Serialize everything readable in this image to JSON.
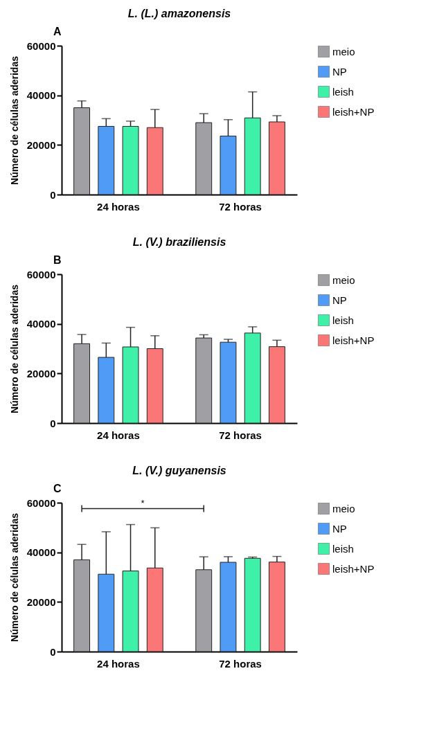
{
  "chart_data": [
    {
      "type": "bar",
      "title": "L. (L.) amazonensis",
      "ylabel": "Número de células aderidas",
      "categories": [
        "24 horas",
        "72 horas"
      ],
      "ylim": [
        0,
        60000
      ],
      "yticks": [
        0,
        20000,
        40000,
        60000
      ],
      "grid": false,
      "legend": "right",
      "annotations": [
        "A"
      ],
      "series": [
        {
          "name": "meio",
          "color": "#a0a0a4",
          "values": [
            35000,
            29000
          ],
          "errors": [
            [
              35000,
              37750
            ],
            [
              29000,
              32600
            ]
          ]
        },
        {
          "name": "NP",
          "color": "#4f9bf5",
          "values": [
            27500,
            23600
          ],
          "errors": [
            [
              27500,
              30600
            ],
            [
              23600,
              30200
            ]
          ]
        },
        {
          "name": "leish",
          "color": "#3ff0a8",
          "values": [
            27500,
            30900
          ],
          "errors": [
            [
              27500,
              29600
            ],
            [
              30900,
              41400
            ]
          ]
        },
        {
          "name": "leish+NP",
          "color": "#fb7777",
          "values": [
            27000,
            29300
          ],
          "errors": [
            [
              27000,
              34300
            ],
            [
              29300,
              31800
            ]
          ]
        }
      ]
    },
    {
      "type": "bar",
      "title": "L. (V.) braziliensis",
      "ylabel": "Número de células aderidas",
      "categories": [
        "24 horas",
        "72 horas"
      ],
      "ylim": [
        0,
        60000
      ],
      "yticks": [
        0,
        20000,
        40000,
        60000
      ],
      "grid": false,
      "legend": "right",
      "annotations": [
        "B"
      ],
      "series": [
        {
          "name": "meio",
          "color": "#a0a0a4",
          "values": [
            32000,
            34300
          ],
          "errors": [
            [
              32000,
              35700
            ],
            [
              34300,
              35600
            ]
          ]
        },
        {
          "name": "NP",
          "color": "#4f9bf5",
          "values": [
            26500,
            32600
          ],
          "errors": [
            [
              26500,
              32250
            ],
            [
              32600,
              33750
            ]
          ]
        },
        {
          "name": "leish",
          "color": "#3ff0a8",
          "values": [
            30700,
            36300
          ],
          "errors": [
            [
              30700,
              38600
            ],
            [
              36300,
              38800
            ]
          ]
        },
        {
          "name": "leish+NP",
          "color": "#fb7777",
          "values": [
            30000,
            30800
          ],
          "errors": [
            [
              30000,
              35200
            ],
            [
              30800,
              33400
            ]
          ]
        }
      ]
    },
    {
      "type": "bar",
      "title": "L. (V.) guyanensis",
      "ylabel": "Número de células aderidas",
      "categories": [
        "24 horas",
        "72 horas"
      ],
      "ylim": [
        0,
        60000
      ],
      "yticks": [
        0,
        20000,
        40000,
        60000
      ],
      "grid": false,
      "legend": "right",
      "annotations": [
        "C",
        "*"
      ],
      "series": [
        {
          "name": "meio",
          "color": "#a0a0a4",
          "values": [
            37000,
            33000
          ],
          "errors": [
            [
              37000,
              43200
            ],
            [
              33000,
              38200
            ]
          ]
        },
        {
          "name": "NP",
          "color": "#4f9bf5",
          "values": [
            31200,
            36000
          ],
          "errors": [
            [
              31200,
              48300
            ],
            [
              36000,
              38250
            ]
          ]
        },
        {
          "name": "leish",
          "color": "#3ff0a8",
          "values": [
            32500,
            37600
          ],
          "errors": [
            [
              32500,
              51200
            ],
            [
              37600,
              38100
            ]
          ]
        },
        {
          "name": "leish+NP",
          "color": "#fb7777",
          "values": [
            33700,
            36100
          ],
          "errors": [
            [
              33700,
              49900
            ],
            [
              36100,
              38350
            ]
          ]
        }
      ]
    }
  ]
}
